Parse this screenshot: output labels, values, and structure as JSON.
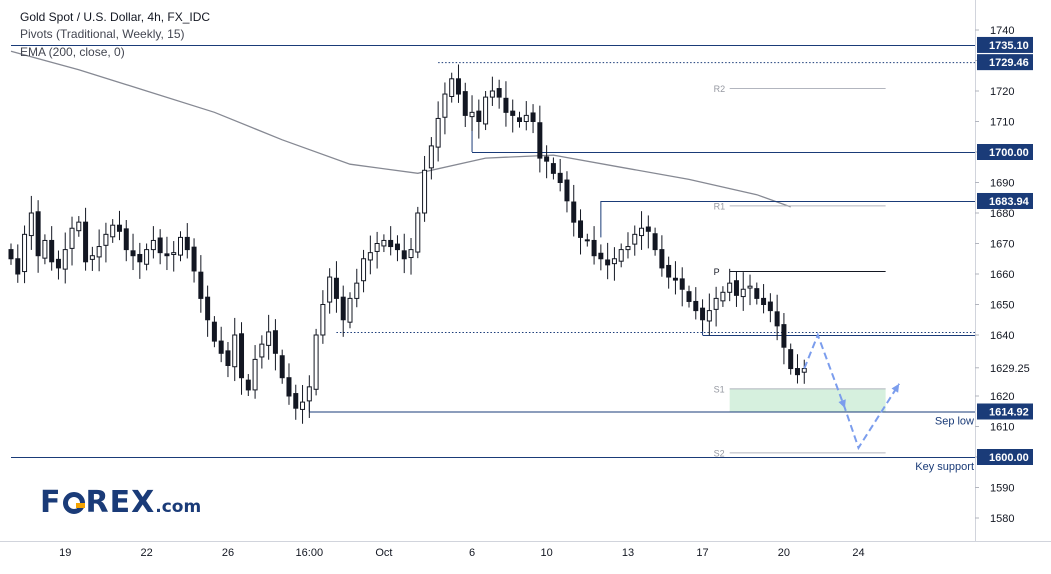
{
  "legend": {
    "title": "Gold Spot / U.S. Dollar, 4h, FX_IDC",
    "pivots": "Pivots (Traditional, Weekly, 15)",
    "ema": "EMA (200, close, 0)"
  },
  "logo": {
    "text_before_o": "F",
    "text_after_o": "REX",
    "suffix": ".com"
  },
  "colors": {
    "candle": "#131722",
    "level_line": "#1a3b78",
    "ema_line": "#868993",
    "pivot_grey": "#b2b5be",
    "arrow": "#7b9ded",
    "zone": "#d6f0de",
    "label_bg": "#1a3b78",
    "annotation": "#1a3b78"
  },
  "chart_data": {
    "type": "candlestick",
    "title": "Gold Spot / U.S. Dollar, 4h, FX_IDC",
    "ylim": [
      1571,
      1745
    ],
    "x_ticks": [
      {
        "label": "19",
        "bar": 8
      },
      {
        "label": "22",
        "bar": 20
      },
      {
        "label": "26",
        "bar": 32
      },
      {
        "label": "16:00",
        "bar": 44
      },
      {
        "label": "Oct",
        "bar": 55
      },
      {
        "label": "6",
        "bar": 68
      },
      {
        "label": "10",
        "bar": 79
      },
      {
        "label": "13",
        "bar": 91
      },
      {
        "label": "17",
        "bar": 102
      },
      {
        "label": "20",
        "bar": 114
      },
      {
        "label": "24",
        "bar": 125
      }
    ],
    "y_ticks": [
      1580,
      1590,
      1600,
      1610,
      1620,
      1629.25,
      1640,
      1650,
      1660,
      1670,
      1680,
      1690,
      1700,
      1710,
      1720,
      1730,
      1740
    ],
    "price_labels": [
      {
        "value": 1735.1,
        "text": "1735.10"
      },
      {
        "value": 1729.46,
        "text": "1729.46"
      },
      {
        "value": 1700.0,
        "text": "1700.00"
      },
      {
        "value": 1683.94,
        "text": "1683.94"
      },
      {
        "value": 1614.92,
        "text": "1614.92"
      },
      {
        "value": 1600.0,
        "text": "1600.00"
      }
    ],
    "close_values": [
      1665,
      1660,
      1673,
      1680,
      1666,
      1671,
      1664,
      1662,
      1668,
      1675,
      1677,
      1664,
      1666,
      1669,
      1673,
      1676,
      1674,
      1668,
      1666,
      1664,
      1668,
      1671,
      1667,
      1666,
      1667,
      1672,
      1668,
      1661,
      1652,
      1645,
      1638,
      1634,
      1630,
      1640,
      1626,
      1622,
      1632,
      1637,
      1641,
      1634,
      1626,
      1620,
      1616,
      1618,
      1623,
      1640,
      1650,
      1659,
      1652,
      1645,
      1652,
      1657,
      1665,
      1667,
      1670,
      1671,
      1669,
      1668,
      1665,
      1668,
      1680,
      1694,
      1702,
      1711,
      1719,
      1724,
      1719,
      1712,
      1713,
      1710,
      1718,
      1720,
      1718,
      1713,
      1712,
      1710,
      1712,
      1710,
      1698,
      1697,
      1693,
      1690,
      1684,
      1677,
      1672,
      1671,
      1666,
      1665,
      1663,
      1665,
      1668,
      1669,
      1673,
      1675,
      1674,
      1668,
      1662,
      1659,
      1658,
      1655,
      1651,
      1648,
      1645,
      1648,
      1652,
      1654,
      1657,
      1653,
      1655,
      1656,
      1652,
      1650,
      1648,
      1643,
      1636,
      1629,
      1627,
      1629
    ],
    "ema": [
      {
        "bar": 0,
        "value": 1733
      },
      {
        "bar": 10,
        "value": 1727
      },
      {
        "bar": 20,
        "value": 1720
      },
      {
        "bar": 30,
        "value": 1713
      },
      {
        "bar": 40,
        "value": 1704
      },
      {
        "bar": 50,
        "value": 1696
      },
      {
        "bar": 60,
        "value": 1693
      },
      {
        "bar": 70,
        "value": 1698
      },
      {
        "bar": 80,
        "value": 1699
      },
      {
        "bar": 90,
        "value": 1695
      },
      {
        "bar": 100,
        "value": 1691
      },
      {
        "bar": 110,
        "value": 1686
      },
      {
        "bar": 115,
        "value": 1682
      }
    ],
    "pivots": [
      {
        "label": "R2",
        "value": 1721
      },
      {
        "label": "R1",
        "value": 1682.5
      },
      {
        "label": "P",
        "value": 1661
      },
      {
        "label": "S1",
        "value": 1622.5
      },
      {
        "label": "S2",
        "value": 1601.5
      }
    ],
    "support_zone": {
      "from": 1614.92,
      "to": 1622.5
    },
    "key_levels": [
      {
        "value": 1735.1,
        "from_bar": 0
      },
      {
        "value": 1729.46,
        "from_bar": 63,
        "dotted": true
      },
      {
        "value": 1700.0,
        "from_bar": 68
      },
      {
        "value": 1683.94,
        "from_bar": 87
      },
      {
        "value": 1641.0,
        "from_bar": 48,
        "dotted": true
      },
      {
        "value": 1640.0,
        "from_bar": 102
      },
      {
        "value": 1614.92,
        "from_bar": 44
      },
      {
        "value": 1600.0,
        "from_bar": 0
      }
    ],
    "annotations": [
      {
        "text": "Sep low",
        "value": 1614.92
      },
      {
        "text": "Key support",
        "value": 1600.0
      }
    ],
    "projection": [
      {
        "bar": 117,
        "value": 1629
      },
      {
        "bar": 119,
        "value": 1640
      },
      {
        "bar": 123,
        "value": 1616
      },
      {
        "bar": 125,
        "value": 1603
      },
      {
        "bar": 131,
        "value": 1624
      }
    ]
  }
}
